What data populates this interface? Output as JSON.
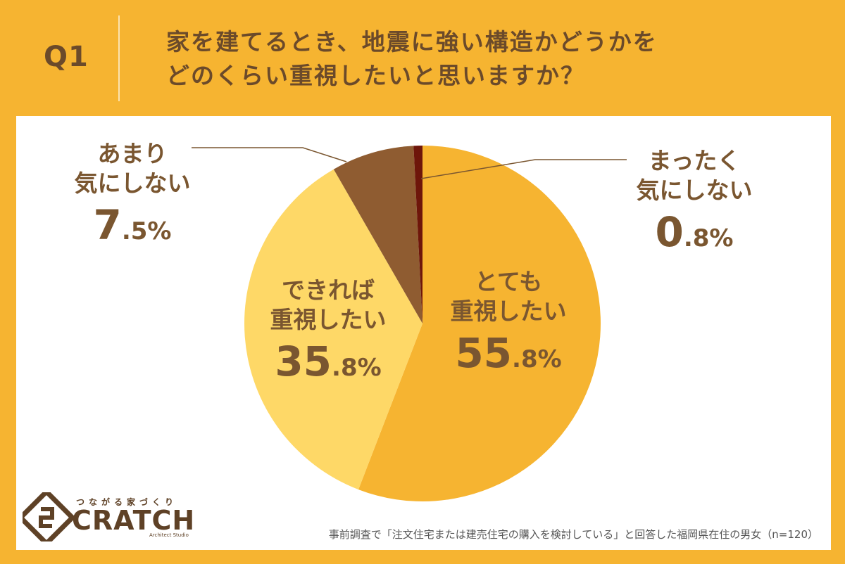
{
  "header": {
    "q_label": "Q1",
    "question_line1": "家を建てるとき、地震に強い構造かどうかを",
    "question_line2": "どのくらい重視したいと思いますか？"
  },
  "colors": {
    "background": "#f6b431",
    "panel": "#ffffff",
    "text": "#7a5630"
  },
  "chart_data": {
    "type": "pie",
    "start": "12 o'clock, clockwise",
    "slices": [
      {
        "label": "とても重視したい",
        "label_lines": [
          "とても",
          "重視したい"
        ],
        "value": 55.8,
        "num": "55",
        "dec": ".8%",
        "color": "#f6b431"
      },
      {
        "label": "できれば重視したい",
        "label_lines": [
          "できれば",
          "重視したい"
        ],
        "value": 35.8,
        "num": "35",
        "dec": ".8%",
        "color": "#fed867"
      },
      {
        "label": "あまり気にしない",
        "label_lines": [
          "あまり",
          "気にしない"
        ],
        "value": 7.5,
        "num": "7",
        "dec": ".5%",
        "color": "#8f5c31"
      },
      {
        "label": "まったく気にしない",
        "label_lines": [
          "まったく",
          "気にしない"
        ],
        "value": 0.8,
        "num": "0",
        "dec": ".8%",
        "color": "#6e160a"
      }
    ]
  },
  "logo": {
    "tagline": "つながる家づくり",
    "name": "CRATCH",
    "sub": "Architect Studio"
  },
  "footnote": "事前調査で「注文住宅または建売住宅の購入を検討している」と回答した福岡県在住の男女（n=120）"
}
